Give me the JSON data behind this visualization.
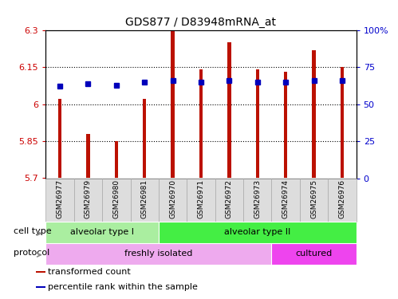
{
  "title": "GDS877 / D83948mRNA_at",
  "samples": [
    "GSM26977",
    "GSM26979",
    "GSM26980",
    "GSM26981",
    "GSM26970",
    "GSM26971",
    "GSM26972",
    "GSM26973",
    "GSM26974",
    "GSM26975",
    "GSM26976"
  ],
  "transformed_count": [
    6.02,
    5.88,
    5.85,
    6.02,
    6.3,
    6.14,
    6.25,
    6.14,
    6.13,
    6.22,
    6.15
  ],
  "percentile_rank": [
    62,
    64,
    63,
    65,
    66,
    65,
    66,
    65,
    65,
    66,
    66
  ],
  "y_min": 5.7,
  "y_max": 6.3,
  "y_ticks": [
    5.7,
    5.85,
    6.0,
    6.15,
    6.3
  ],
  "y_tick_labels": [
    "5.7",
    "5.85",
    "6",
    "6.15",
    "6.3"
  ],
  "right_y_ticks": [
    0,
    25,
    50,
    75,
    100
  ],
  "right_y_labels": [
    "0",
    "25",
    "50",
    "75",
    "100%"
  ],
  "bar_color": "#bb1100",
  "dot_color": "#0000bb",
  "grid_lines": [
    5.85,
    6.0,
    6.15
  ],
  "cell_type_groups": [
    {
      "label": "alveolar type I",
      "start": 0,
      "end": 4,
      "color": "#aaeea0"
    },
    {
      "label": "alveolar type II",
      "start": 4,
      "end": 11,
      "color": "#44ee44"
    }
  ],
  "protocol_groups": [
    {
      "label": "freshly isolated",
      "start": 0,
      "end": 8,
      "color": "#eeaaee"
    },
    {
      "label": "cultured",
      "start": 8,
      "end": 11,
      "color": "#ee44ee"
    }
  ],
  "legend_items": [
    {
      "label": "transformed count",
      "color": "#bb1100"
    },
    {
      "label": "percentile rank within the sample",
      "color": "#0000bb"
    }
  ],
  "tick_color_left": "#cc0000",
  "tick_color_right": "#0000cc",
  "bar_width": 0.12,
  "background_color": "#ffffff",
  "label_left_texts": [
    "cell type",
    "protocol"
  ],
  "arrow_color": "#888888"
}
